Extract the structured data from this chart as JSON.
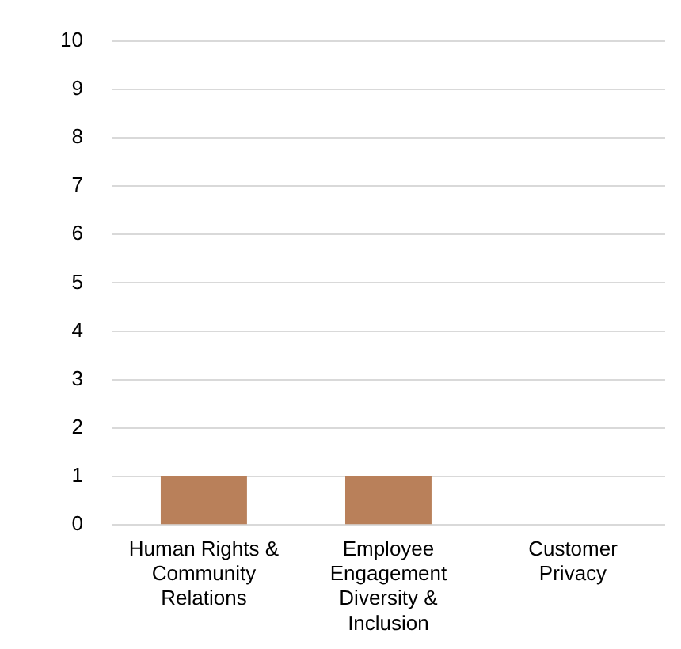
{
  "chart_data": {
    "type": "bar",
    "categories": [
      "Human Rights & Community Relations",
      "Employee Engagement Diversity & Inclusion",
      "Customer Privacy"
    ],
    "values": [
      1,
      1,
      0
    ],
    "color": "#b9805a",
    "ylim": [
      0,
      10
    ],
    "yticks": [
      0,
      1,
      2,
      3,
      4,
      5,
      6,
      7,
      8,
      9,
      10
    ],
    "grid": "y",
    "legend": false
  }
}
